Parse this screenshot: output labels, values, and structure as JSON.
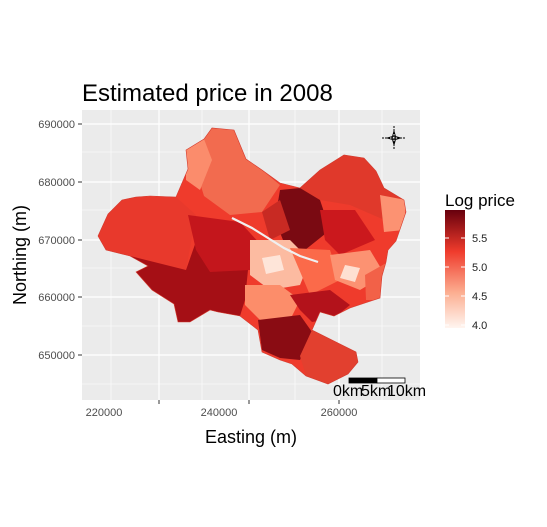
{
  "map": {
    "title": "Estimated price in 2008",
    "x_axis": {
      "title": "Easting (m)",
      "ticks": [
        "220000",
        "240000",
        "260000"
      ]
    },
    "y_axis": {
      "title": "Northing (m)",
      "ticks": [
        "690000",
        "680000",
        "670000",
        "660000",
        "650000"
      ]
    },
    "legend": {
      "title": "Log price",
      "labels": [
        "5.5",
        "5.0",
        "4.5",
        "4.0"
      ],
      "colors": {
        "low": "#fff5f0",
        "mid_low": "#fcae91",
        "mid": "#ef3b2c",
        "high": "#67000d"
      }
    },
    "scale_bar": {
      "labels": [
        "0km",
        "5km",
        "10km"
      ]
    },
    "north_arrow": "north-arrow-icon",
    "panel_background": "#ebebeb"
  }
}
